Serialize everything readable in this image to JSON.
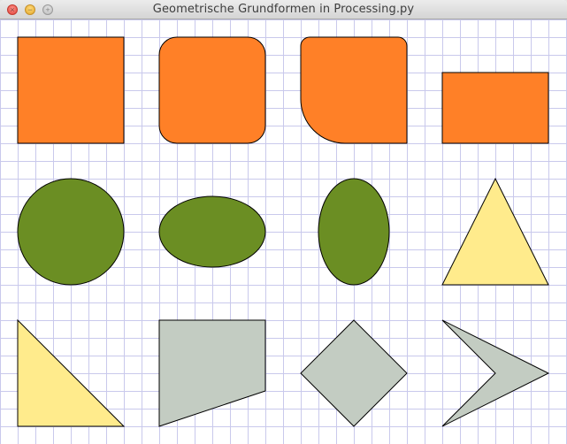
{
  "window": {
    "title": "Geometrische Grundformen in Processing.py",
    "buttons": {
      "close": "×",
      "minimize": "−",
      "zoom": "+"
    }
  },
  "canvas": {
    "background": "#ffffff",
    "grid_color": "#c9c9ec",
    "stroke_color": "#000000",
    "colors": {
      "orange": "#ff8027",
      "green": "#6b8e23",
      "yellow": "#ffeb8c",
      "gray": "#c3ccc2"
    },
    "shapes": [
      {
        "name": "square",
        "row": 1,
        "col": 1,
        "fill": "orange"
      },
      {
        "name": "rounded-rectangle",
        "row": 1,
        "col": 2,
        "fill": "orange"
      },
      {
        "name": "rounded-rectangle-large-corner",
        "row": 1,
        "col": 3,
        "fill": "orange"
      },
      {
        "name": "rectangle",
        "row": 1,
        "col": 4,
        "fill": "orange"
      },
      {
        "name": "circle",
        "row": 2,
        "col": 1,
        "fill": "green"
      },
      {
        "name": "ellipse-horizontal",
        "row": 2,
        "col": 2,
        "fill": "green"
      },
      {
        "name": "ellipse-vertical",
        "row": 2,
        "col": 3,
        "fill": "green"
      },
      {
        "name": "triangle",
        "row": 2,
        "col": 4,
        "fill": "yellow"
      },
      {
        "name": "right-triangle",
        "row": 3,
        "col": 1,
        "fill": "yellow"
      },
      {
        "name": "quadrilateral",
        "row": 3,
        "col": 2,
        "fill": "gray"
      },
      {
        "name": "diamond",
        "row": 3,
        "col": 3,
        "fill": "gray"
      },
      {
        "name": "arrowhead",
        "row": 3,
        "col": 4,
        "fill": "gray"
      }
    ]
  }
}
